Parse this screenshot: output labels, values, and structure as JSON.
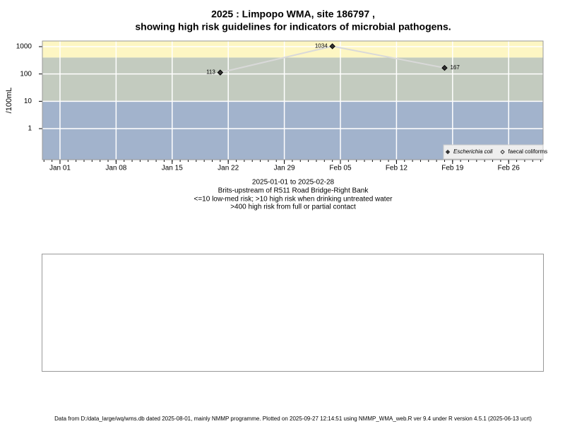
{
  "chart_data": {
    "type": "line",
    "title": [
      "2025 : Limpopo WMA, site 186797 ,",
      "showing high risk guidelines for indicators of microbial pathogens."
    ],
    "ylabel": "/100mL",
    "notes": [
      "2025-01-01 to 2025-02-28",
      "Brits-upstream of R511 Road Bridge-Right Bank",
      "<=10 low-med risk; >10 high risk when drinking untreated water",
      ">400 high risk from full or partial contact"
    ],
    "footer": "Data from D:/data_large/wq/wms.db dated 2025-08-01, mainly NMMP programme. Plotted on 2025-09-27 12:14:51 using NMMP_WMA_web.R ver 9.4 under R version 4.5.1 (2025-06-13 ucrt)",
    "x": [
      21,
      35,
      49
    ],
    "series": [
      {
        "name": "Escherichia coli",
        "color": "#333333",
        "line_color": "#d9d9d9",
        "values": [
          113,
          1034,
          167
        ],
        "value_labels": [
          "113",
          "1034",
          "167"
        ]
      },
      {
        "name": "faecal coliforms",
        "color": "#333333",
        "values": [
          null,
          null,
          null
        ]
      }
    ],
    "xlim": [
      -1.2,
      61.3
    ],
    "xticks": [
      {
        "value": 1,
        "label": "Jan 01"
      },
      {
        "value": 8,
        "label": "Jan 08"
      },
      {
        "value": 15,
        "label": "Jan 15"
      },
      {
        "value": 22,
        "label": "Jan 22"
      },
      {
        "value": 29,
        "label": "Jan 29"
      },
      {
        "value": 36,
        "label": "Feb 05"
      },
      {
        "value": 43,
        "label": "Feb 12"
      },
      {
        "value": 50,
        "label": "Feb 19"
      },
      {
        "value": 57,
        "label": "Feb 26"
      }
    ],
    "ylim": [
      0.073,
      1610
    ],
    "yticks": [
      1,
      10,
      100,
      1000
    ],
    "log_y": true,
    "grid": true,
    "bands": {
      "thresholds": [
        10,
        400
      ],
      "colors": [
        "#a2b3cc",
        "#c3cbbf",
        "#fdf6c3"
      ]
    },
    "legend": "bottom-right"
  }
}
